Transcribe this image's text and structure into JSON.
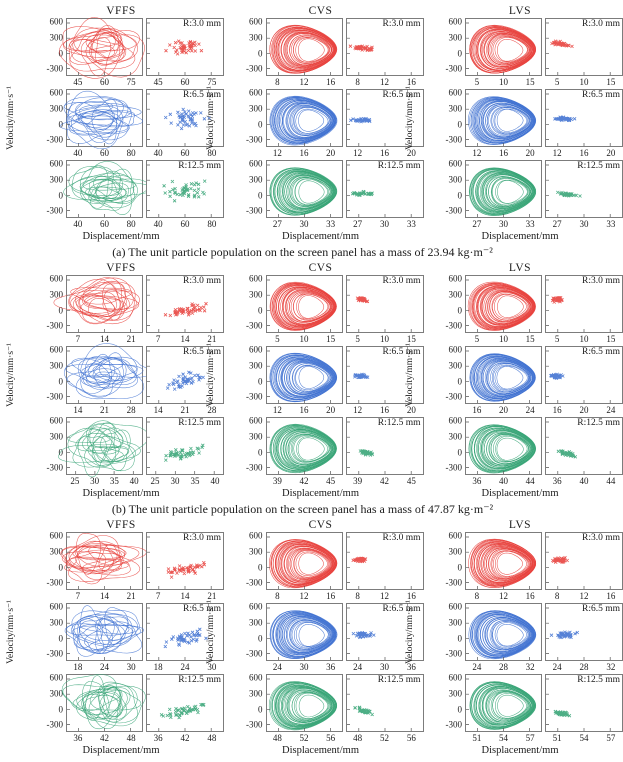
{
  "chart_data": {
    "type": "scatter",
    "figure": "Phase portraits (velocity vs displacement) with Poincare point sections for three screening systems at three amplitudes R",
    "ylabel": "Velocity/mm·s⁻¹",
    "xlabel": "Displacement/mm",
    "yticks": [
      600,
      300,
      0,
      -300
    ],
    "ylim": [
      -430,
      680
    ],
    "groups": [
      {
        "caption": "(a) The unit particle population on the screen panel has a mass of 23.94 kg·m⁻²",
        "columns": [
          {
            "title": "VFFS",
            "rows": [
              {
                "r_label": "R:3.0 mm",
                "color": "#e8433e",
                "xticks": [
                  45,
                  60,
                  75
                ],
                "portrait": "tangle",
                "poincare": {
                  "style": "spread",
                  "center": [
                    0.52,
                    0.5
                  ],
                  "spread": [
                    0.33,
                    0.22
                  ],
                  "tilt": 0.1
                }
              },
              {
                "r_label": "R:6.5 mm",
                "color": "#4273d2",
                "xticks": [
                  40,
                  60,
                  80
                ],
                "portrait": "tangle",
                "poincare": {
                  "style": "spread",
                  "center": [
                    0.5,
                    0.52
                  ],
                  "spread": [
                    0.36,
                    0.26
                  ],
                  "tilt": 0.15
                }
              },
              {
                "r_label": "R:12.5 mm",
                "color": "#3aa578",
                "xticks": [
                  40,
                  60,
                  80
                ],
                "portrait": "tangle",
                "poincare": {
                  "style": "spread",
                  "center": [
                    0.5,
                    0.55
                  ],
                  "spread": [
                    0.38,
                    0.28
                  ],
                  "tilt": 0.1
                }
              }
            ]
          },
          {
            "title": "CVS",
            "rows": [
              {
                "r_label": "R:3.0 mm",
                "color": "#e8433e",
                "xticks": [
                  8,
                  12,
                  16
                ],
                "portrait": "band",
                "poincare": {
                  "style": "cluster",
                  "center": [
                    0.22,
                    0.52
                  ],
                  "spread": [
                    0.2,
                    0.05
                  ],
                  "tilt": -0.1
                }
              },
              {
                "r_label": "R:6.5 mm",
                "color": "#4273d2",
                "xticks": [
                  12,
                  16,
                  20
                ],
                "portrait": "band",
                "poincare": {
                  "style": "cluster",
                  "center": [
                    0.2,
                    0.54
                  ],
                  "spread": [
                    0.18,
                    0.05
                  ],
                  "tilt": 0
                }
              },
              {
                "r_label": "R:12.5 mm",
                "color": "#3aa578",
                "xticks": [
                  27,
                  30,
                  33
                ],
                "portrait": "band",
                "poincare": {
                  "style": "cluster",
                  "center": [
                    0.22,
                    0.58
                  ],
                  "spread": [
                    0.18,
                    0.05
                  ],
                  "tilt": 0
                }
              }
            ]
          },
          {
            "title": "LVS",
            "rows": [
              {
                "r_label": "R:3.0 mm",
                "color": "#e8433e",
                "xticks": [
                  5,
                  10,
                  15
                ],
                "portrait": "band",
                "poincare": {
                  "style": "cluster",
                  "center": [
                    0.2,
                    0.45
                  ],
                  "spread": [
                    0.18,
                    0.05
                  ],
                  "tilt": -0.2
                }
              },
              {
                "r_label": "R:6.5 mm",
                "color": "#4273d2",
                "xticks": [
                  12,
                  16,
                  20
                ],
                "portrait": "band",
                "poincare": {
                  "style": "cluster",
                  "center": [
                    0.25,
                    0.52
                  ],
                  "spread": [
                    0.2,
                    0.05
                  ],
                  "tilt": -0.1
                }
              },
              {
                "r_label": "R:12.5 mm",
                "color": "#3aa578",
                "xticks": [
                  27,
                  30,
                  33
                ],
                "portrait": "band",
                "poincare": {
                  "style": "cluster",
                  "center": [
                    0.3,
                    0.6
                  ],
                  "spread": [
                    0.22,
                    0.04
                  ],
                  "tilt": -0.15
                }
              }
            ]
          }
        ]
      },
      {
        "caption": "(b) The unit particle population on the screen panel has a mass of 47.87 kg·m⁻²",
        "columns": [
          {
            "title": "VFFS",
            "rows": [
              {
                "r_label": "R:3.0 mm",
                "color": "#e8433e",
                "xticks": [
                  7,
                  14,
                  21
                ],
                "portrait": "tangle",
                "poincare": {
                  "style": "spread",
                  "center": [
                    0.5,
                    0.62
                  ],
                  "spread": [
                    0.35,
                    0.12
                  ],
                  "tilt": 0.2
                }
              },
              {
                "r_label": "R:6.5 mm",
                "color": "#4273d2",
                "xticks": [
                  14,
                  21,
                  28
                ],
                "portrait": "tangle",
                "poincare": {
                  "style": "spread",
                  "center": [
                    0.5,
                    0.6
                  ],
                  "spread": [
                    0.36,
                    0.18
                  ],
                  "tilt": 0.35
                }
              },
              {
                "r_label": "R:12.5 mm",
                "color": "#3aa578",
                "xticks": [
                  25,
                  30,
                  35,
                  40
                ],
                "portrait": "tangle",
                "poincare": {
                  "style": "spread",
                  "center": [
                    0.5,
                    0.62
                  ],
                  "spread": [
                    0.38,
                    0.14
                  ],
                  "tilt": 0.3
                }
              }
            ]
          },
          {
            "title": "CVS",
            "rows": [
              {
                "r_label": "R:3.0 mm",
                "color": "#e8433e",
                "xticks": [
                  5,
                  10,
                  15
                ],
                "portrait": "band",
                "poincare": {
                  "style": "cluster",
                  "center": [
                    0.2,
                    0.42
                  ],
                  "spread": [
                    0.1,
                    0.05
                  ],
                  "tilt": -0.25
                }
              },
              {
                "r_label": "R:6.5 mm",
                "color": "#4273d2",
                "xticks": [
                  12,
                  16,
                  20
                ],
                "portrait": "band",
                "poincare": {
                  "style": "cluster",
                  "center": [
                    0.18,
                    0.52
                  ],
                  "spread": [
                    0.13,
                    0.05
                  ],
                  "tilt": 0
                }
              },
              {
                "r_label": "R:12.5 mm",
                "color": "#3aa578",
                "xticks": [
                  39,
                  42,
                  45
                ],
                "portrait": "band",
                "poincare": {
                  "style": "cluster",
                  "center": [
                    0.25,
                    0.62
                  ],
                  "spread": [
                    0.14,
                    0.05
                  ],
                  "tilt": -0.3
                }
              }
            ]
          },
          {
            "title": "LVS",
            "rows": [
              {
                "r_label": "R:3.0 mm",
                "color": "#e8433e",
                "xticks": [
                  5,
                  10,
                  15
                ],
                "portrait": "band",
                "poincare": {
                  "style": "cluster",
                  "center": [
                    0.15,
                    0.42
                  ],
                  "spread": [
                    0.1,
                    0.06
                  ],
                  "tilt": 0
                }
              },
              {
                "r_label": "R:6.5 mm",
                "color": "#4273d2",
                "xticks": [
                  16,
                  20,
                  24
                ],
                "portrait": "band",
                "poincare": {
                  "style": "cluster",
                  "center": [
                    0.14,
                    0.52
                  ],
                  "spread": [
                    0.11,
                    0.05
                  ],
                  "tilt": 0
                }
              },
              {
                "r_label": "R:12.5 mm",
                "color": "#3aa578",
                "xticks": [
                  36,
                  40,
                  44
                ],
                "portrait": "band",
                "poincare": {
                  "style": "cluster",
                  "center": [
                    0.28,
                    0.64
                  ],
                  "spread": [
                    0.15,
                    0.06
                  ],
                  "tilt": -0.3
                }
              }
            ]
          }
        ]
      },
      {
        "caption": "",
        "columns": [
          {
            "title": "VFFS",
            "rows": [
              {
                "r_label": "R:3.0 mm",
                "color": "#e8433e",
                "xticks": [
                  7,
                  14,
                  21
                ],
                "portrait": "tangle",
                "poincare": {
                  "style": "spread",
                  "center": [
                    0.5,
                    0.66
                  ],
                  "spread": [
                    0.36,
                    0.12
                  ],
                  "tilt": 0.25
                }
              },
              {
                "r_label": "R:6.5 mm",
                "color": "#4273d2",
                "xticks": [
                  18,
                  24,
                  30
                ],
                "portrait": "tangle",
                "poincare": {
                  "style": "spread",
                  "center": [
                    0.52,
                    0.6
                  ],
                  "spread": [
                    0.36,
                    0.16
                  ],
                  "tilt": 0.3
                }
              },
              {
                "r_label": "R:12.5 mm",
                "color": "#3aa578",
                "xticks": [
                  36,
                  42,
                  48
                ],
                "portrait": "tangle",
                "poincare": {
                  "style": "spread",
                  "center": [
                    0.5,
                    0.64
                  ],
                  "spread": [
                    0.38,
                    0.14
                  ],
                  "tilt": 0.25
                }
              }
            ]
          },
          {
            "title": "CVS",
            "rows": [
              {
                "r_label": "R:3.0 mm",
                "color": "#e8433e",
                "xticks": [
                  8,
                  12,
                  16
                ],
                "portrait": "band",
                "poincare": {
                  "style": "cluster",
                  "center": [
                    0.17,
                    0.48
                  ],
                  "spread": [
                    0.1,
                    0.06
                  ],
                  "tilt": 0
                }
              },
              {
                "r_label": "R:6.5 mm",
                "color": "#4273d2",
                "xticks": [
                  24,
                  30,
                  36
                ],
                "portrait": "band",
                "poincare": {
                  "style": "cluster",
                  "center": [
                    0.22,
                    0.55
                  ],
                  "spread": [
                    0.18,
                    0.06
                  ],
                  "tilt": 0
                }
              },
              {
                "r_label": "R:12.5 mm",
                "color": "#3aa578",
                "xticks": [
                  48,
                  52,
                  56
                ],
                "portrait": "band",
                "poincare": {
                  "style": "cluster",
                  "center": [
                    0.22,
                    0.64
                  ],
                  "spread": [
                    0.16,
                    0.05
                  ],
                  "tilt": -0.35
                }
              }
            ]
          },
          {
            "title": "LVS",
            "rows": [
              {
                "r_label": "R:3.0 mm",
                "color": "#e8433e",
                "xticks": [
                  8,
                  12,
                  16
                ],
                "portrait": "band",
                "poincare": {
                  "style": "cluster",
                  "center": [
                    0.18,
                    0.48
                  ],
                  "spread": [
                    0.14,
                    0.07
                  ],
                  "tilt": 0.1
                }
              },
              {
                "r_label": "R:6.5 mm",
                "color": "#4273d2",
                "xticks": [
                  24,
                  28,
                  32
                ],
                "portrait": "band",
                "poincare": {
                  "style": "cluster",
                  "center": [
                    0.25,
                    0.55
                  ],
                  "spread": [
                    0.2,
                    0.06
                  ],
                  "tilt": 0.1
                }
              },
              {
                "r_label": "R:12.5 mm",
                "color": "#3aa578",
                "xticks": [
                  51,
                  54,
                  57
                ],
                "portrait": "band",
                "poincare": {
                  "style": "cluster",
                  "center": [
                    0.2,
                    0.68
                  ],
                  "spread": [
                    0.15,
                    0.07
                  ],
                  "tilt": -0.3
                }
              }
            ]
          }
        ]
      }
    ]
  }
}
